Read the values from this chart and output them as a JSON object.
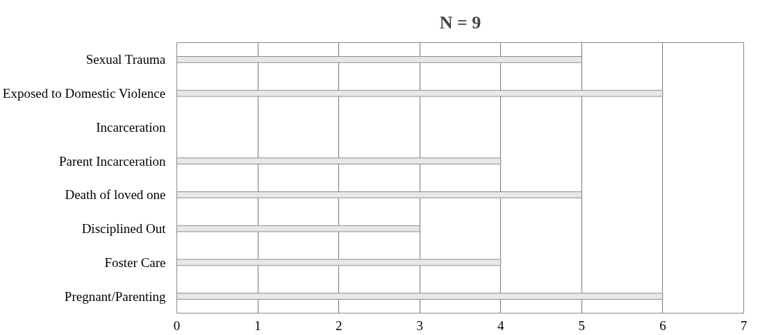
{
  "chart_data": {
    "type": "bar",
    "orientation": "horizontal",
    "title": "N = 9",
    "categories": [
      "Sexual Trauma",
      "Exposed to Domestic Violence",
      "Incarceration",
      "Parent Incarceration",
      "Death of loved one",
      "Disciplined Out",
      "Foster Care",
      "Pregnant/Parenting"
    ],
    "values": [
      5,
      6,
      0,
      4,
      5,
      3,
      4,
      6
    ],
    "color": "#e8e8e8",
    "xlim": [
      0,
      7
    ],
    "xticks": [
      0,
      1,
      2,
      3,
      4,
      5,
      6,
      7
    ],
    "grid": "x"
  }
}
